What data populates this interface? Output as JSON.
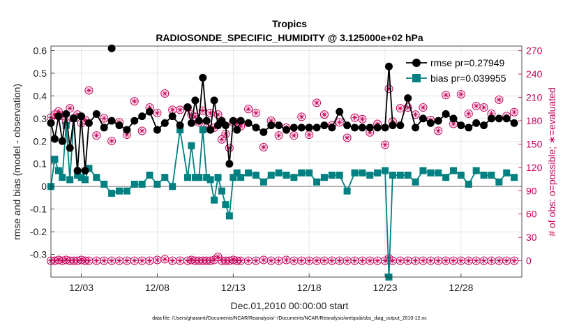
{
  "chart_data": {
    "type": "line",
    "title": "Tropics",
    "subtitle": "RADIOSONDE_SPECIFIC_HUMIDITY @ 3.125000e+02 hPa",
    "xlabel": "Dec.01,2010 00:00:00 start",
    "ylabel": "rmse and bias (model - observation)",
    "y2label": "# of obs: o=possible; ∗=evaluated",
    "footnote": "data file: /Users/gharamti/Documents/NCAR/Reanalysis/~/Documents/NCAR/Reanalysis/webpub/obs_diag_output_2010-12.nc",
    "xlim": [
      1.0,
      32.0
    ],
    "ylim": [
      -0.4,
      0.62
    ],
    "y2lim": [
      -21,
      276
    ],
    "x_ticks": [
      3,
      8,
      13,
      18,
      23,
      28
    ],
    "x_tick_labels": [
      "12/03",
      "12/08",
      "12/13",
      "12/18",
      "12/23",
      "12/28"
    ],
    "y_ticks": [
      -0.3,
      -0.2,
      -0.1,
      0,
      0.1,
      0.2,
      0.3,
      0.4,
      0.5,
      0.6
    ],
    "y_tick_labels": [
      "-0.3",
      "-0.2",
      "-0.1",
      "0",
      "0.1",
      "0.2",
      "0.3",
      "0.4",
      "0.5",
      "0.6"
    ],
    "y2_ticks": [
      0,
      30,
      60,
      90,
      120,
      150,
      180,
      210,
      240,
      270
    ],
    "y2_tick_labels": [
      "0",
      "30",
      "60",
      "90",
      "120",
      "150",
      "180",
      "210",
      "240",
      "270"
    ],
    "grid": true,
    "legend_position": "top-right",
    "series": [
      {
        "name": "rmse",
        "legend_label": "rmse pr=0.27949",
        "color": "#000000",
        "marker": "circle",
        "x": [
          1.0,
          1.25,
          1.5,
          1.75,
          2.0,
          2.25,
          2.5,
          2.75,
          3.0,
          3.25,
          3.5,
          4.0,
          4.5,
          5.0,
          5.5,
          6.0,
          6.5,
          7.0,
          7.5,
          8.0,
          8.5,
          9.0,
          9.5,
          10.0,
          10.25,
          10.5,
          10.75,
          11.0,
          11.25,
          11.5,
          11.75,
          12.0,
          12.25,
          12.5,
          12.75,
          13.0,
          13.25,
          13.5,
          14.0,
          14.5,
          15.0,
          15.5,
          16.0,
          16.5,
          17.0,
          17.5,
          18.0,
          18.5,
          19.0,
          19.5,
          20.0,
          20.5,
          21.0,
          21.5,
          22.0,
          22.5,
          23.0,
          23.25,
          23.5,
          24.0,
          24.5,
          25.0,
          25.5,
          26.0,
          26.5,
          27.0,
          27.5,
          28.0,
          28.5,
          29.0,
          29.5,
          30.0,
          30.5,
          31.0,
          31.5
        ],
        "y": [
          0.28,
          0.21,
          0.31,
          0.2,
          0.32,
          0.17,
          0.3,
          0.07,
          0.31,
          0.07,
          0.28,
          0.32,
          0.26,
          0.29,
          0.27,
          0.25,
          0.29,
          0.31,
          0.33,
          0.25,
          0.28,
          0.31,
          0.27,
          0.35,
          0.28,
          0.38,
          0.29,
          0.48,
          0.29,
          0.25,
          0.38,
          0.27,
          0.29,
          0.27,
          0.1,
          0.29,
          0.25,
          0.29,
          0.28,
          0.26,
          0.24,
          0.27,
          0.27,
          0.25,
          0.26,
          0.26,
          0.26,
          0.26,
          0.27,
          0.26,
          0.33,
          0.27,
          0.26,
          0.26,
          0.26,
          0.26,
          0.26,
          0.53,
          0.27,
          0.27,
          0.39,
          0.26,
          0.3,
          0.28,
          0.29,
          0.32,
          0.3,
          0.27,
          0.26,
          0.28,
          0.27,
          0.3,
          0.3,
          0.3,
          0.28
        ]
      },
      {
        "name": "bias",
        "legend_label": "bias pr=0.039955",
        "color": "#008080",
        "marker": "square",
        "x": [
          1.0,
          1.25,
          1.5,
          1.75,
          2.0,
          2.25,
          2.5,
          2.75,
          3.0,
          3.25,
          3.5,
          4.0,
          4.5,
          5.0,
          5.5,
          6.0,
          6.5,
          7.0,
          7.5,
          8.0,
          8.5,
          9.0,
          9.5,
          10.0,
          10.25,
          10.5,
          10.75,
          11.0,
          11.25,
          11.5,
          11.75,
          12.0,
          12.25,
          12.5,
          12.75,
          13.0,
          13.25,
          13.5,
          14.0,
          14.5,
          15.0,
          15.5,
          16.0,
          16.5,
          17.0,
          17.5,
          18.0,
          18.5,
          19.0,
          19.5,
          20.0,
          20.5,
          21.0,
          21.5,
          22.0,
          22.5,
          23.0,
          23.25,
          23.5,
          24.0,
          24.5,
          25.0,
          25.5,
          26.0,
          26.5,
          27.0,
          27.5,
          28.0,
          28.5,
          29.0,
          29.5,
          30.0,
          30.5,
          31.0,
          31.5
        ],
        "y": [
          0.0,
          0.12,
          0.07,
          0.04,
          0.27,
          0.03,
          0.3,
          0.05,
          0.04,
          0.03,
          0.08,
          0.04,
          0.01,
          -0.03,
          -0.02,
          -0.02,
          0.01,
          0.01,
          0.05,
          0.01,
          0.04,
          0.0,
          0.25,
          0.04,
          0.18,
          0.04,
          0.04,
          0.25,
          0.04,
          0.03,
          -0.06,
          0.04,
          -0.02,
          -0.08,
          -0.13,
          0.04,
          0.06,
          0.04,
          0.06,
          0.05,
          0.02,
          0.05,
          0.06,
          0.05,
          0.04,
          0.06,
          0.06,
          0.02,
          0.04,
          0.05,
          0.05,
          -0.02,
          0.06,
          0.06,
          0.05,
          0.06,
          0.07,
          -0.4,
          0.05,
          0.05,
          0.05,
          0.02,
          0.07,
          0.06,
          0.06,
          0.04,
          0.07,
          0.05,
          0.01,
          0.07,
          0.05,
          0.05,
          0.02,
          0.06,
          0.04
        ]
      },
      {
        "name": "obs possible",
        "color": "#c8005a",
        "marker": "open-circle",
        "axis": "right",
        "x": [
          1.0,
          1.25,
          1.5,
          1.75,
          2.0,
          2.25,
          2.5,
          2.75,
          3.0,
          3.25,
          3.5,
          4.0,
          4.5,
          5.0,
          5.5,
          6.0,
          6.5,
          7.0,
          7.5,
          8.0,
          8.5,
          9.0,
          9.5,
          10.0,
          10.25,
          10.5,
          10.75,
          11.0,
          11.25,
          11.5,
          11.75,
          12.0,
          12.25,
          12.5,
          12.75,
          13.0,
          13.25,
          13.5,
          14.0,
          14.5,
          15.0,
          15.5,
          16.0,
          16.5,
          17.0,
          17.5,
          18.0,
          18.5,
          19.0,
          19.5,
          20.0,
          20.5,
          21.0,
          21.5,
          22.0,
          22.5,
          23.0,
          23.25,
          23.5,
          24.0,
          24.5,
          25.0,
          25.5,
          26.0,
          26.5,
          27.0,
          27.5,
          28.0,
          28.5,
          29.0,
          29.5,
          30.0,
          30.5,
          31.0,
          31.5
        ],
        "y": [
          184,
          188,
          192,
          186,
          178,
          196,
          183,
          188,
          177,
          181,
          219,
          161,
          183,
          154,
          178,
          162,
          205,
          167,
          197,
          190,
          215,
          194,
          194,
          197,
          188,
          185,
          178,
          193,
          171,
          190,
          171,
          188,
          156,
          163,
          145,
          178,
          178,
          173,
          195,
          190,
          146,
          180,
          161,
          171,
          161,
          185,
          162,
          203,
          188,
          174,
          178,
          158,
          184,
          182,
          165,
          176,
          149,
          221,
          179,
          196,
          197,
          188,
          197,
          181,
          167,
          213,
          176,
          214,
          189,
          199,
          197,
          189,
          207,
          186,
          191
        ]
      },
      {
        "name": "obs evaluated",
        "color": "#c8005a",
        "marker": "asterisk",
        "axis": "right",
        "x": [
          1.0,
          1.25,
          1.5,
          1.75,
          2.0,
          2.25,
          2.5,
          2.75,
          3.0,
          3.25,
          3.5,
          4.0,
          4.5,
          5.0,
          5.5,
          6.0,
          6.5,
          7.0,
          7.5,
          8.0,
          8.5,
          9.0,
          9.5,
          10.0,
          10.25,
          10.5,
          10.75,
          11.0,
          11.25,
          11.5,
          11.75,
          12.0,
          12.25,
          12.5,
          12.75,
          13.0,
          13.25,
          13.5,
          14.0,
          14.5,
          15.0,
          15.5,
          16.0,
          16.5,
          17.0,
          17.5,
          18.0,
          18.5,
          19.0,
          19.5,
          20.0,
          20.5,
          21.0,
          21.5,
          22.0,
          22.5,
          23.0,
          23.25,
          23.5,
          24.0,
          24.5,
          25.0,
          25.5,
          26.0,
          26.5,
          27.0,
          27.5,
          28.0,
          28.5,
          29.0,
          29.5,
          30.0,
          30.5,
          31.0,
          31.5
        ],
        "y": [
          184,
          188,
          192,
          186,
          178,
          196,
          183,
          188,
          177,
          181,
          219,
          161,
          183,
          154,
          178,
          162,
          205,
          167,
          197,
          190,
          215,
          194,
          194,
          197,
          188,
          185,
          178,
          193,
          171,
          190,
          171,
          188,
          156,
          163,
          145,
          178,
          178,
          173,
          195,
          190,
          146,
          180,
          161,
          171,
          161,
          185,
          162,
          203,
          188,
          174,
          178,
          158,
          184,
          182,
          165,
          176,
          149,
          221,
          179,
          196,
          197,
          188,
          197,
          181,
          167,
          213,
          176,
          214,
          189,
          199,
          197,
          189,
          207,
          186,
          191
        ]
      },
      {
        "name": "obs possible (bottom row)",
        "color": "#c8005a",
        "marker": "open-circle",
        "axis": "right",
        "x": [
          1.0,
          1.25,
          1.5,
          1.75,
          2.0,
          2.25,
          2.5,
          2.75,
          3.0,
          3.25,
          3.5,
          4.0,
          4.5,
          5.0,
          5.5,
          6.0,
          6.5,
          7.0,
          7.5,
          8.0,
          8.5,
          9.0,
          9.5,
          10.0,
          10.25,
          10.5,
          10.75,
          11.0,
          11.25,
          11.5,
          11.75,
          12.0,
          12.25,
          12.5,
          12.75,
          13.0,
          13.25,
          13.5,
          14.0,
          14.5,
          15.0,
          15.5,
          16.0,
          16.5,
          17.0,
          17.5,
          18.0,
          18.5,
          19.0,
          19.5,
          20.0,
          20.5,
          21.0,
          21.5,
          22.0,
          22.5,
          23.0,
          23.25,
          23.5,
          24.0,
          24.5,
          25.0,
          25.5,
          26.0,
          26.5,
          27.0,
          27.5,
          28.0,
          28.5,
          29.0,
          29.5,
          30.0,
          30.5,
          31.0,
          31.5
        ],
        "y": [
          0,
          0,
          1,
          0,
          1,
          0,
          0,
          0,
          1,
          0,
          0,
          0,
          0,
          0,
          0,
          0,
          0,
          0,
          0,
          1,
          2,
          0,
          0,
          0,
          1,
          0,
          0,
          0,
          0,
          0,
          1,
          5,
          0,
          0,
          0,
          1,
          0,
          0,
          0,
          0,
          1,
          0,
          0,
          1,
          0,
          0,
          0,
          0,
          0,
          0,
          0,
          0,
          0,
          0,
          0,
          0,
          0,
          3,
          0,
          0,
          0,
          0,
          0,
          0,
          0,
          0,
          0,
          0,
          0,
          0,
          0,
          0,
          0,
          0,
          0
        ]
      },
      {
        "name": "obs evaluated (bottom row)",
        "color": "#c8005a",
        "marker": "asterisk",
        "axis": "right",
        "x": [
          1.0,
          1.25,
          1.5,
          1.75,
          2.0,
          2.25,
          2.5,
          2.75,
          3.0,
          3.25,
          3.5,
          4.0,
          4.5,
          5.0,
          5.5,
          6.0,
          6.5,
          7.0,
          7.5,
          8.0,
          8.5,
          9.0,
          9.5,
          10.0,
          10.25,
          10.5,
          10.75,
          11.0,
          11.25,
          11.5,
          11.75,
          12.0,
          12.25,
          12.5,
          12.75,
          13.0,
          13.25,
          13.5,
          14.0,
          14.5,
          15.0,
          15.5,
          16.0,
          16.5,
          17.0,
          17.5,
          18.0,
          18.5,
          19.0,
          19.5,
          20.0,
          20.5,
          21.0,
          21.5,
          22.0,
          22.5,
          23.0,
          23.25,
          23.5,
          24.0,
          24.5,
          25.0,
          25.5,
          26.0,
          26.5,
          27.0,
          27.5,
          28.0,
          28.5,
          29.0,
          29.5,
          30.0,
          30.5,
          31.0,
          31.5
        ],
        "y": [
          0,
          0,
          1,
          0,
          1,
          0,
          0,
          0,
          1,
          0,
          0,
          0,
          0,
          0,
          0,
          0,
          0,
          0,
          0,
          1,
          2,
          0,
          0,
          0,
          1,
          0,
          0,
          0,
          0,
          0,
          1,
          5,
          0,
          0,
          0,
          1,
          0,
          0,
          0,
          0,
          1,
          0,
          0,
          1,
          0,
          0,
          0,
          0,
          0,
          0,
          0,
          0,
          0,
          0,
          0,
          0,
          0,
          3,
          0,
          0,
          0,
          0,
          0,
          0,
          0,
          0,
          0,
          0,
          0,
          0,
          0,
          0,
          0,
          0,
          0
        ]
      }
    ],
    "outlier": {
      "name": "rmse outlier",
      "x": 5.0,
      "y": 0.61
    }
  },
  "colors": {
    "rmse": "#000000",
    "bias": "#008080",
    "obs": "#c8005a",
    "zero_line": "#aaaaaa",
    "grid": "#dddddd"
  }
}
